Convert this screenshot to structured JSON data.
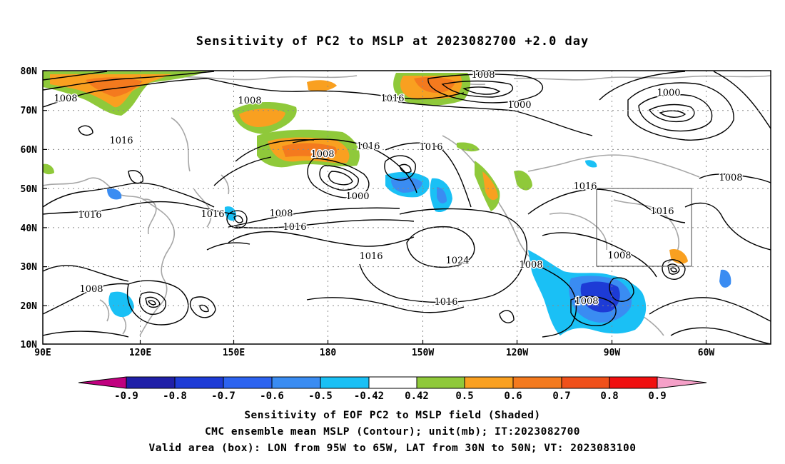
{
  "title": "Sensitivity of PC2 to MSLP at 2023082700 +2.0 day",
  "map": {
    "lat_ticks": [
      "80N",
      "70N",
      "60N",
      "50N",
      "40N",
      "30N",
      "20N",
      "10N"
    ],
    "lon_ticks": [
      "90E",
      "120E",
      "150E",
      "180",
      "150W",
      "120W",
      "90W",
      "60W"
    ],
    "contour_labels": [
      "1008",
      "1008",
      "1008",
      "1000",
      "1016",
      "1016",
      "1000",
      "1008",
      "1016",
      "1016",
      "1008",
      "1016",
      "1016",
      "1016",
      "1016",
      "1008",
      "1000",
      "1008",
      "1016",
      "1024",
      "1016",
      "1008",
      "1008",
      "1008",
      "1016"
    ]
  },
  "colorbar": {
    "labels": [
      "-0.9",
      "-0.8",
      "-0.7",
      "-0.6",
      "-0.5",
      "-0.42",
      "0.42",
      "0.5",
      "0.6",
      "0.7",
      "0.8",
      "0.9"
    ],
    "colors": [
      "#c0007f",
      "#1f1fa8",
      "#1d3bd6",
      "#2c63f0",
      "#3a8cf2",
      "#1ac0f5",
      "#ffffff",
      "#8fc93a",
      "#f9a020",
      "#f47a1e",
      "#f0501a",
      "#f01010",
      "#f5a0c8"
    ]
  },
  "captions": {
    "line1": "Sensitivity of EOF PC2 to MSLP field (Shaded)",
    "line2": "CMC ensemble mean MSLP (Contour); unit(mb); IT:2023082700",
    "line3": "Valid area (box): LON from 95W to 65W, LAT from 30N to 50N; VT: 2023083100"
  },
  "shading_colors": {
    "green": "#8fc93a",
    "orange": "#f9a020",
    "dark_orange": "#f47a1e",
    "light_blue": "#1ac0f5",
    "blue": "#3a8cf2",
    "dark_blue": "#1d3bd6"
  }
}
